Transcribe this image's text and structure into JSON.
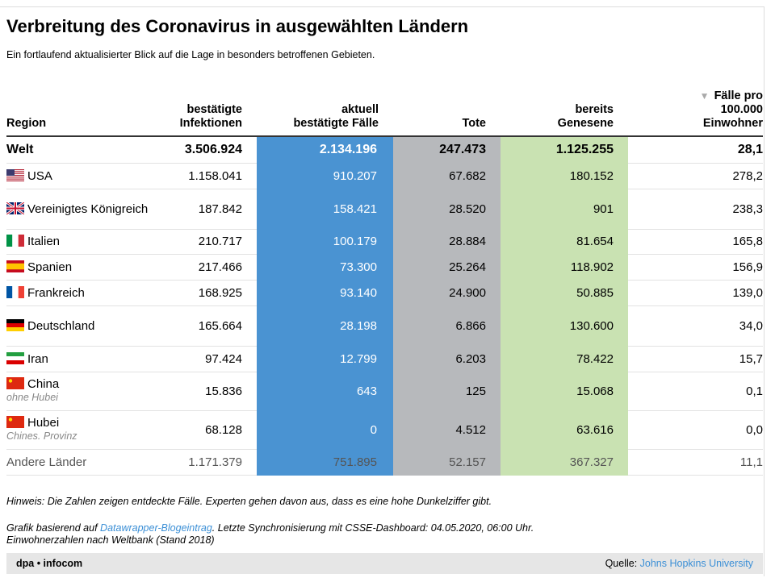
{
  "header": {
    "title": "Verbreitung des Coronavirus in ausgewählten Ländern",
    "subtitle": "Ein fortlaufend aktualisierter Blick auf die Lage in besonders betroffenen Gebieten."
  },
  "table": {
    "columns": [
      [
        "Region"
      ],
      [
        "bestätigte",
        "Infektionen"
      ],
      [
        "aktuell",
        "bestätigte Fälle"
      ],
      [
        "Tote"
      ],
      [
        "bereits",
        "Genesene"
      ],
      [
        "Fälle pro",
        "100.000",
        "Einwohner"
      ]
    ],
    "rows": [
      {
        "region": "Welt",
        "values": [
          "3.506.924",
          "2.134.196",
          "247.473",
          "1.125.255",
          "28,1"
        ]
      },
      {
        "region": "USA",
        "values": [
          "1.158.041",
          "910.207",
          "67.682",
          "180.152",
          "278,2"
        ]
      },
      {
        "region": "Vereinigtes Königreich",
        "values": [
          "187.842",
          "158.421",
          "28.520",
          "901",
          "238,3"
        ]
      },
      {
        "region": "Italien",
        "values": [
          "210.717",
          "100.179",
          "28.884",
          "81.654",
          "165,8"
        ]
      },
      {
        "region": "Spanien",
        "values": [
          "217.466",
          "73.300",
          "25.264",
          "118.902",
          "156,9"
        ]
      },
      {
        "region": "Frankreich",
        "values": [
          "168.925",
          "93.140",
          "24.900",
          "50.885",
          "139,0"
        ]
      },
      {
        "region": "Deutschland",
        "values": [
          "165.664",
          "28.198",
          "6.866",
          "130.600",
          "34,0"
        ]
      },
      {
        "region": "Iran",
        "values": [
          "97.424",
          "12.799",
          "6.203",
          "78.422",
          "15,7"
        ]
      },
      {
        "region": "China",
        "note": "ohne Hubei",
        "values": [
          "15.836",
          "643",
          "125",
          "15.068",
          "0,1"
        ]
      },
      {
        "region": "Hubei",
        "note": "Chines. Provinz",
        "values": [
          "68.128",
          "0",
          "4.512",
          "63.616",
          "0,0"
        ]
      },
      {
        "region": "Andere Länder",
        "values": [
          "1.171.379",
          "751.895",
          "52.157",
          "367.327",
          "11,1"
        ]
      }
    ]
  },
  "notes": {
    "hint": "Hinweis: Die Zahlen zeigen entdeckte Fälle. Experten gehen davon aus, dass es eine hohe Dunkelziffer gibt.",
    "source_prefix": "Grafik basierend auf",
    "source_link": "Datawrapper-Blogeintrag",
    "source_suffix": ". Letzte Synchronisierung mit CSSE-Dashboard: 04.05.2020, 06:00 Uhr.",
    "population": "Einwohnerzahlen nach Weltbank (Stand 2018)"
  },
  "footer": {
    "brand": "dpa • infocom",
    "source_label": "Quelle:",
    "source_link": "Johns Hopkins University"
  }
}
